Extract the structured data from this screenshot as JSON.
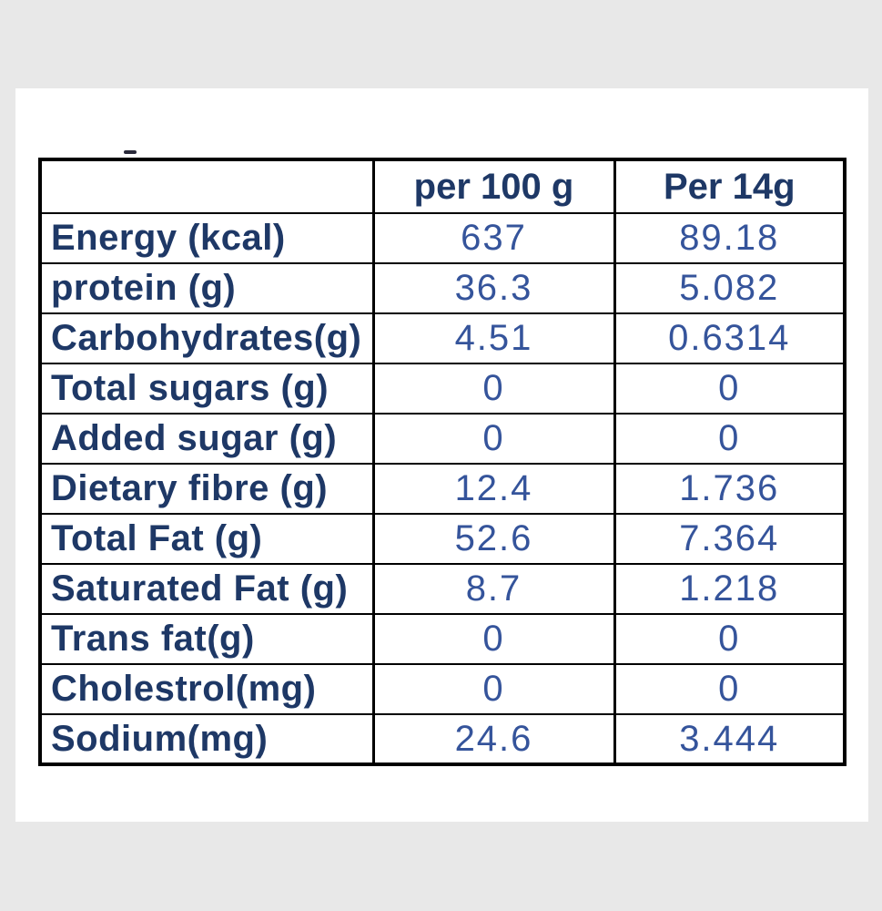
{
  "colors": {
    "background": "#e8e8e8",
    "panel": "#ffffff",
    "border": "#000000",
    "label_text": "#1e3866",
    "value_text": "#35549b"
  },
  "table": {
    "columns": [
      "",
      "per 100 g",
      "Per 14g"
    ],
    "rows": [
      {
        "label": "Energy (kcal)",
        "per_100g": "637",
        "per_14g": "89.18"
      },
      {
        "label": "protein (g)",
        "per_100g": "36.3",
        "per_14g": "5.082"
      },
      {
        "label": "Carbohydrates(g)",
        "per_100g": "4.51",
        "per_14g": "0.6314"
      },
      {
        "label": "Total sugars (g)",
        "per_100g": "0",
        "per_14g": "0"
      },
      {
        "label": "Added sugar (g)",
        "per_100g": "0",
        "per_14g": "0"
      },
      {
        "label": "Dietary fibre (g)",
        "per_100g": "12.4",
        "per_14g": "1.736"
      },
      {
        "label": "Total Fat (g)",
        "per_100g": "52.6",
        "per_14g": "7.364"
      },
      {
        "label": "Saturated Fat (g)",
        "per_100g": "8.7",
        "per_14g": "1.218"
      },
      {
        "label": "Trans fat(g)",
        "per_100g": "0",
        "per_14g": "0"
      },
      {
        "label": "Cholestrol(mg)",
        "per_100g": "0",
        "per_14g": "0"
      },
      {
        "label": "Sodium(mg)",
        "per_100g": "24.6",
        "per_14g": "3.444"
      }
    ]
  }
}
